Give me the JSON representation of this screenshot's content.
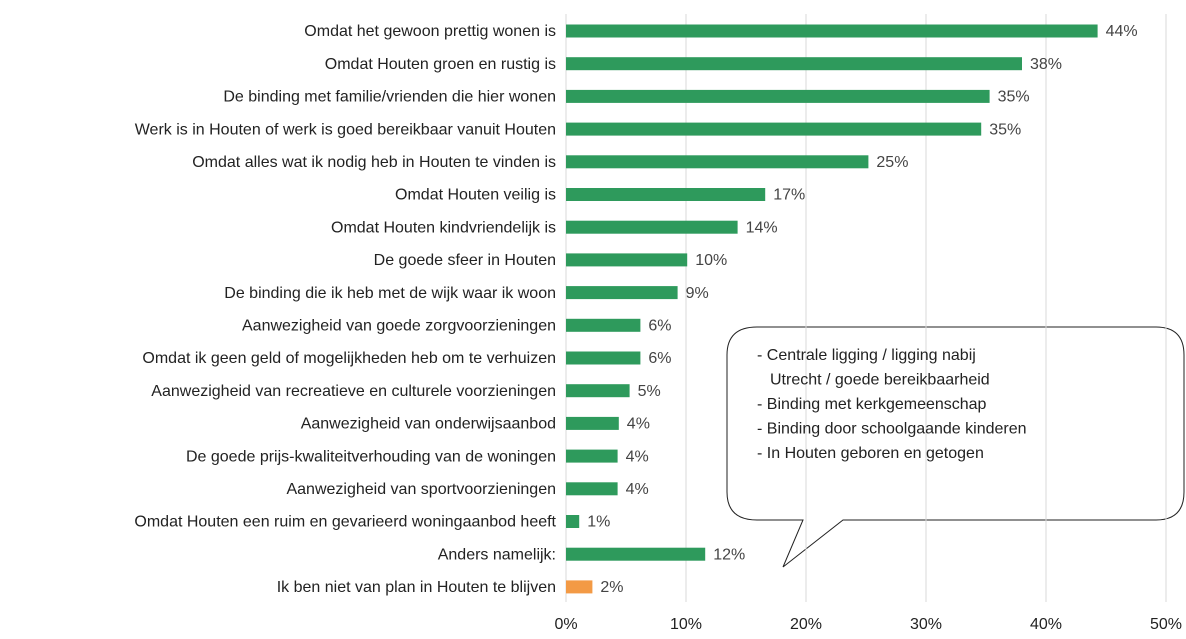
{
  "chart_data": {
    "type": "barh",
    "categories": [
      "Omdat het gewoon prettig wonen is",
      "Omdat Houten groen en rustig is",
      "De binding met familie/vrienden die hier wonen",
      "Werk is in Houten of werk is goed bereikbaar vanuit Houten",
      "Omdat alles wat ik nodig heb in Houten te vinden is",
      "Omdat Houten veilig is",
      "Omdat Houten kindvriendelijk is",
      "De goede sfeer in Houten",
      "De binding die ik heb met de wijk waar ik woon",
      "Aanwezigheid van goede zorgvoorzieningen",
      "Omdat ik geen geld of mogelijkheden heb om te verhuizen",
      "Aanwezigheid van recreatieve en culturele voorzieningen",
      "Aanwezigheid van onderwijsaanbod",
      "De goede prijs-kwaliteitverhouding van de woningen",
      "Aanwezigheid van sportvoorzieningen",
      "Omdat Houten een ruim en gevarieerd woningaanbod heeft",
      "Anders namelijk:",
      "Ik ben niet van plan in Houten te blijven"
    ],
    "values": [
      44.3,
      38.0,
      35.3,
      34.6,
      25.2,
      16.6,
      14.3,
      10.1,
      9.3,
      6.2,
      6.2,
      5.3,
      4.4,
      4.3,
      4.3,
      1.1,
      11.6,
      2.2
    ],
    "value_labels": [
      "44%",
      "38%",
      "35%",
      "35%",
      "25%",
      "17%",
      "14%",
      "10%",
      "9%",
      "6%",
      "6%",
      "5%",
      "4%",
      "4%",
      "4%",
      "1%",
      "12%",
      "2%"
    ],
    "colors": [
      "#2e9a5c",
      "#2e9a5c",
      "#2e9a5c",
      "#2e9a5c",
      "#2e9a5c",
      "#2e9a5c",
      "#2e9a5c",
      "#2e9a5c",
      "#2e9a5c",
      "#2e9a5c",
      "#2e9a5c",
      "#2e9a5c",
      "#2e9a5c",
      "#2e9a5c",
      "#2e9a5c",
      "#2e9a5c",
      "#2e9a5c",
      "#f39a45"
    ],
    "xlim": [
      0,
      50
    ],
    "xticks": [
      {
        "value": 0,
        "label": "0%"
      },
      {
        "value": 10,
        "label": "10%"
      },
      {
        "value": 20,
        "label": "20%"
      },
      {
        "value": 30,
        "label": "30%"
      },
      {
        "value": 40,
        "label": "40%"
      },
      {
        "value": 50,
        "label": "50%"
      }
    ],
    "grid": true,
    "annotation": [
      "- Centrale ligging / ligging nabij",
      "Utrecht / goede bereikbaarheid",
      "- Binding met kerkgemeenschap",
      "- Binding door schoolgaande kinderen",
      "- In Houten geboren en getogen"
    ]
  }
}
